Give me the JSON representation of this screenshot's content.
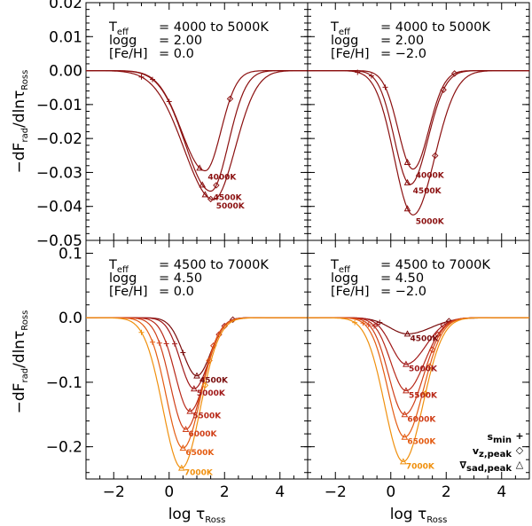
{
  "chart_data": {
    "type": "line",
    "title": "",
    "xlabel": "log τRoss",
    "ylabel": "-dFrad/dlnτRoss",
    "x_axis": {
      "range": [
        -3,
        5
      ],
      "ticks": [
        -2,
        0,
        2,
        4
      ],
      "tick_labels": [
        "−2",
        "0",
        "2",
        "4"
      ],
      "label_main": "log τ",
      "label_sub": "Ross"
    },
    "y_axis": {
      "label_main": "−dF",
      "label_sub1": "rad",
      "label_mid": "/dlnτ",
      "label_sub2": "Ross"
    },
    "legend": {
      "position": "bottom-right",
      "entries": [
        {
          "main": "s",
          "sub": "min",
          "marker": "plus",
          "symbol": "+"
        },
        {
          "main": "v",
          "sub": "z,peak",
          "marker": "diamond",
          "symbol": "◇"
        },
        {
          "main": "∇",
          "sub": "sad,peak",
          "marker": "triangle",
          "symbol": "△"
        }
      ]
    },
    "panels": [
      {
        "id": "top-left",
        "ylim": [
          -0.05,
          0.02
        ],
        "yticks": [
          0.02,
          0.01,
          0.0,
          -0.01,
          -0.02,
          -0.03,
          -0.04,
          -0.05
        ],
        "ytick_labels": [
          "0.02",
          "0.01",
          "0.00",
          "−0.01",
          "−0.02",
          "−0.03",
          "−0.04",
          "−0.05"
        ],
        "info": {
          "teff_label": "T",
          "teff_sub": "eff",
          "teff_value": "= 4000 to 5000K",
          "logg_label": "logg",
          "logg_value": "= 2.00",
          "feh_label": "[Fe/H]",
          "feh_value": "= 0.0"
        },
        "series": [
          {
            "name": "4000K",
            "color": "#8b1010",
            "center": 1.3,
            "depth": 0.0295,
            "wl": 1.2,
            "wr": 0.8,
            "smin": 0.0,
            "vz": 2.2,
            "nabla": 1.1
          },
          {
            "name": "4500K",
            "color": "#8b1010",
            "center": 1.5,
            "depth": 0.0355,
            "wl": 1.3,
            "wr": 0.9,
            "smin": -0.6,
            "vz": 1.7,
            "nabla": 1.2
          },
          {
            "name": "5000K",
            "color": "#8b1010",
            "center": 1.6,
            "depth": 0.038,
            "wl": 1.5,
            "wr": 1.1,
            "smin": -1.0,
            "vz": 1.5,
            "nabla": 1.3
          }
        ]
      },
      {
        "id": "top-right",
        "ylim": [
          -0.05,
          0.02
        ],
        "yticks": [
          0.02,
          0.01,
          0.0,
          -0.01,
          -0.02,
          -0.03,
          -0.04,
          -0.05
        ],
        "ytick_labels": [],
        "info": {
          "teff_label": "T",
          "teff_sub": "eff",
          "teff_value": "= 4000 to 5000K",
          "logg_label": "logg",
          "logg_value": "= 2.00",
          "feh_label": "[Fe/H]",
          "feh_value": "= −2.0"
        },
        "series": [
          {
            "name": "4000K",
            "color": "#8b1010",
            "center": 0.8,
            "depth": 0.029,
            "wl": 0.75,
            "wr": 0.8,
            "smin": -0.2,
            "vz": 2.3,
            "nabla": 0.6
          },
          {
            "name": "4500K",
            "color": "#8b1010",
            "center": 0.7,
            "depth": 0.0335,
            "wl": 0.8,
            "wr": 0.9,
            "smin": -0.7,
            "vz": 1.9,
            "nabla": 0.6
          },
          {
            "name": "5000K",
            "color": "#8b1010",
            "center": 0.8,
            "depth": 0.0425,
            "wl": 0.95,
            "wr": 1.1,
            "smin": -1.2,
            "vz": 1.6,
            "nabla": 0.6
          }
        ]
      },
      {
        "id": "bottom-left",
        "ylim": [
          -0.25,
          0.12
        ],
        "yticks": [
          0.1,
          0.0,
          -0.1,
          -0.2
        ],
        "ytick_labels": [
          "0.1",
          "0.0",
          "−0.1",
          "−0.2"
        ],
        "info": {
          "teff_label": "T",
          "teff_sub": "eff",
          "teff_value": "= 4500 to 7000K",
          "logg_label": "logg",
          "logg_value": "= 4.50",
          "feh_label": "[Fe/H]",
          "feh_value": "= 0.0"
        },
        "series": [
          {
            "name": "4500K",
            "color": "#7a0c0c",
            "center": 1.0,
            "depth": 0.09,
            "wl": 0.7,
            "wr": 0.7,
            "smin": 0.5,
            "vz": 2.3,
            "nabla": 1.0
          },
          {
            "name": "5000K",
            "color": "#a01818",
            "center": 0.9,
            "depth": 0.11,
            "wl": 0.7,
            "wr": 0.75,
            "smin": 0.2,
            "vz": 2.0,
            "nabla": 0.9
          },
          {
            "name": "5500K",
            "color": "#b82818",
            "center": 0.75,
            "depth": 0.145,
            "wl": 0.75,
            "wr": 0.8,
            "smin": -0.1,
            "vz": 1.8,
            "nabla": 0.75
          },
          {
            "name": "6000K",
            "color": "#d03f18",
            "center": 0.6,
            "depth": 0.173,
            "wl": 0.78,
            "wr": 0.85,
            "smin": -0.35,
            "vz": 1.6,
            "nabla": 0.6
          },
          {
            "name": "6500K",
            "color": "#e45c12",
            "center": 0.5,
            "depth": 0.202,
            "wl": 0.85,
            "wr": 0.9,
            "smin": -0.6,
            "vz": 1.45,
            "nabla": 0.5
          },
          {
            "name": "7000K",
            "color": "#f0900e",
            "center": 0.45,
            "depth": 0.233,
            "wl": 0.95,
            "wr": 0.95,
            "smin": -1.0,
            "vz": 1.3,
            "nabla": 0.45
          }
        ]
      },
      {
        "id": "bottom-right",
        "ylim": [
          -0.25,
          0.12
        ],
        "yticks": [
          0.1,
          0.0,
          -0.1,
          -0.2
        ],
        "ytick_labels": [],
        "info": {
          "teff_label": "T",
          "teff_sub": "eff",
          "teff_value": "= 4500 to 7000K",
          "logg_label": "logg",
          "logg_value": "= 4.50",
          "feh_label": "[Fe/H]",
          "feh_value": "= −2.0"
        },
        "series": [
          {
            "name": "4500K",
            "color": "#7a0c0c",
            "center": 0.6,
            "depth": 0.025,
            "wl": 0.9,
            "wr": 1.2,
            "smin": -0.4,
            "vz": 2.1,
            "nabla": 0.6
          },
          {
            "name": "5000K",
            "color": "#a01818",
            "center": 0.55,
            "depth": 0.072,
            "wl": 0.75,
            "wr": 1.0,
            "smin": -0.5,
            "vz": 1.9,
            "nabla": 0.55
          },
          {
            "name": "5500K",
            "color": "#b82818",
            "center": 0.55,
            "depth": 0.113,
            "wl": 0.78,
            "wr": 0.95,
            "smin": -0.6,
            "vz": 1.7,
            "nabla": 0.55
          },
          {
            "name": "6000K",
            "color": "#d03f18",
            "center": 0.5,
            "depth": 0.15,
            "wl": 0.8,
            "wr": 0.95,
            "smin": -0.8,
            "vz": 1.5,
            "nabla": 0.5
          },
          {
            "name": "6500K",
            "color": "#e45c12",
            "center": 0.5,
            "depth": 0.185,
            "wl": 0.85,
            "wr": 0.95,
            "smin": -1.0,
            "vz": 1.4,
            "nabla": 0.5
          },
          {
            "name": "7000K",
            "color": "#f0900e",
            "center": 0.45,
            "depth": 0.223,
            "wl": 0.95,
            "wr": 1.0,
            "smin": -1.3,
            "vz": 1.25,
            "nabla": 0.45
          }
        ]
      }
    ]
  }
}
